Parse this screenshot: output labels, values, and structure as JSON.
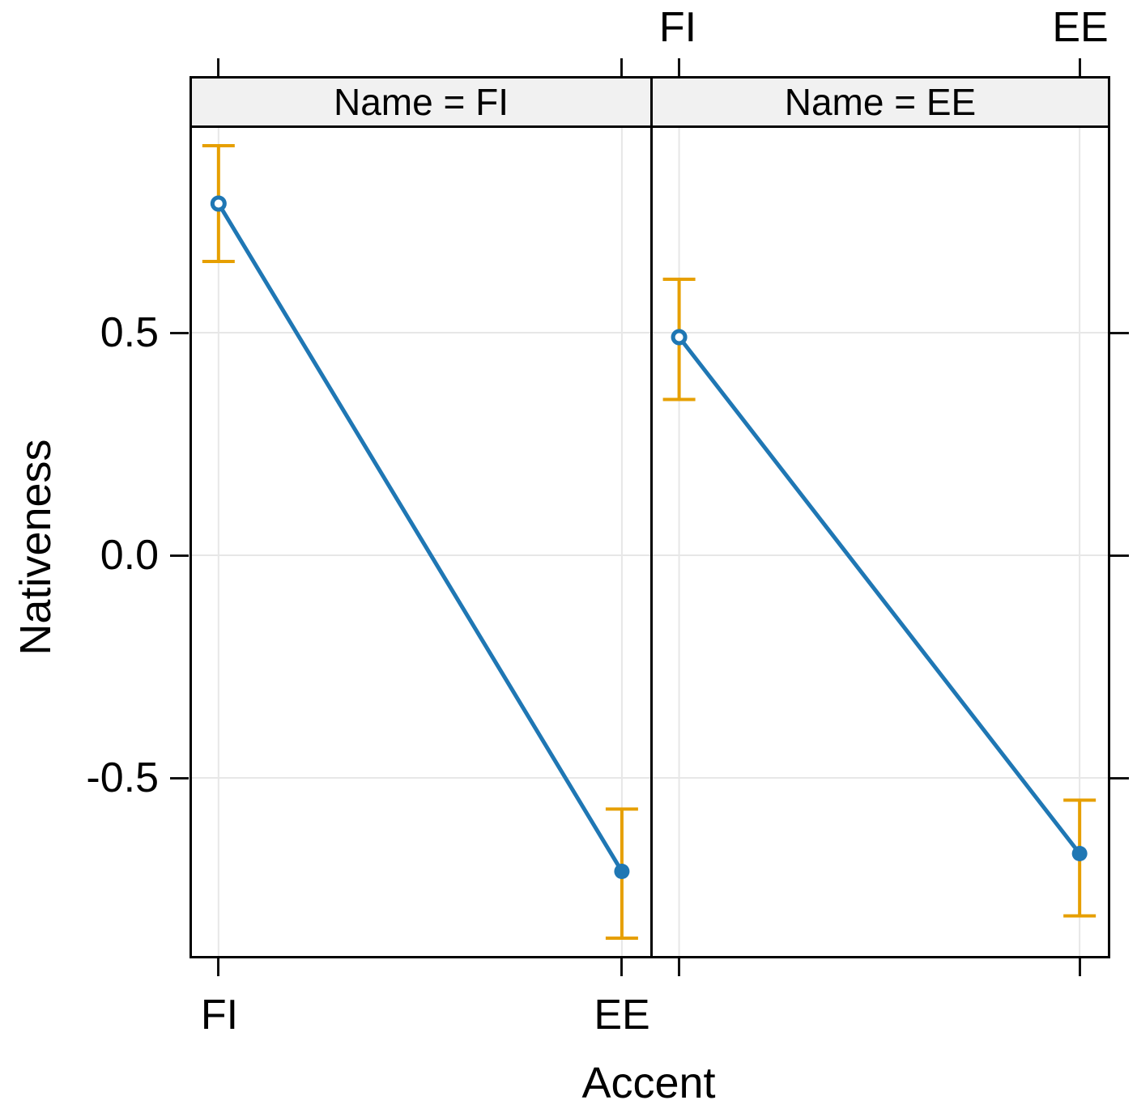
{
  "figure": {
    "background": "#ffffff",
    "colors": {
      "series_line": "#1f77b4",
      "marker_fill": "#1f77b4",
      "error_bar": "#e69f00",
      "grid_line": "#e7e7e7",
      "strip_background": "#f1f1f1",
      "panel_border": "#000000",
      "tick": "#111111",
      "text": "#000000"
    }
  },
  "chart_data": {
    "type": "line",
    "title": "",
    "xlabel": "Accent",
    "ylabel": "Nativeness",
    "x_categories": [
      "FI",
      "EE"
    ],
    "ylim": [
      -0.9,
      0.96
    ],
    "yticks": [
      0.5,
      0.0,
      -0.5
    ],
    "ytick_labels": [
      "0.5",
      "0.0",
      "-0.5"
    ],
    "grid": true,
    "legend_position": "none",
    "top_axis_labels": [
      "FI",
      "EE"
    ],
    "bottom_axis_labels": [
      "FI",
      "EE"
    ],
    "panels": [
      {
        "strip_label": "Name = FI",
        "x_axis_labels_shown": "bottom",
        "points": [
          {
            "x": "FI",
            "y": 0.79,
            "err_low": 0.66,
            "err_high": 0.92,
            "marker": "open-circle"
          },
          {
            "x": "EE",
            "y": -0.71,
            "err_low": -0.86,
            "err_high": -0.57,
            "marker": "filled-circle"
          }
        ]
      },
      {
        "strip_label": "Name = EE",
        "x_axis_labels_shown": "top",
        "points": [
          {
            "x": "FI",
            "y": 0.49,
            "err_low": 0.35,
            "err_high": 0.62,
            "marker": "open-circle"
          },
          {
            "x": "EE",
            "y": -0.67,
            "err_low": -0.81,
            "err_high": -0.55,
            "marker": "filled-circle"
          }
        ]
      }
    ]
  }
}
